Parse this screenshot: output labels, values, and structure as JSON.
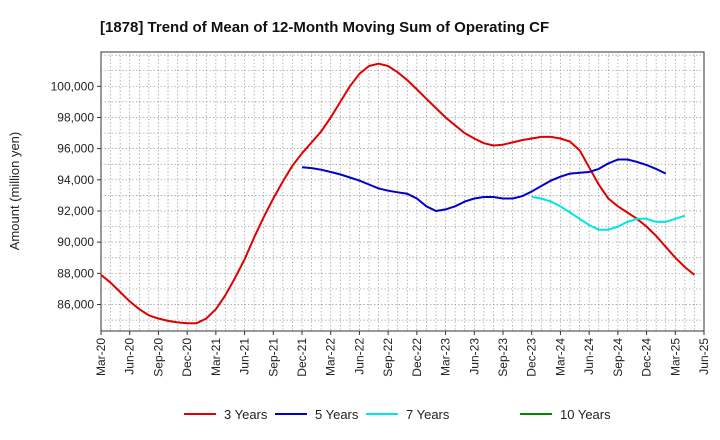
{
  "chart_data": {
    "type": "line",
    "title": "[1878]  Trend of Mean of 12-Month Moving Sum of Operating CF",
    "xlabel": "",
    "ylabel": "Amount (million yen)",
    "ylim": [
      84300,
      102200
    ],
    "y_ticks": [
      86000,
      88000,
      90000,
      92000,
      94000,
      96000,
      98000,
      100000
    ],
    "y_tick_labels": [
      "86,000",
      "88,000",
      "90,000",
      "92,000",
      "94,000",
      "96,000",
      "98,000",
      "100,000"
    ],
    "x_tick_labels": [
      "Mar-20",
      "Jun-20",
      "Sep-20",
      "Dec-20",
      "Mar-21",
      "Jun-21",
      "Sep-21",
      "Dec-21",
      "Mar-22",
      "Jun-22",
      "Sep-22",
      "Dec-22",
      "Mar-23",
      "Jun-23",
      "Sep-23",
      "Dec-23",
      "Mar-24",
      "Jun-24",
      "Sep-24",
      "Dec-24",
      "Mar-25",
      "Jun-25"
    ],
    "grid": true,
    "legend_position": "bottom",
    "series": [
      {
        "name": "3 Years",
        "color": "#e00000",
        "start_index": 0,
        "values": [
          87900,
          87400,
          86800,
          86200,
          85700,
          85300,
          85100,
          84950,
          84850,
          84800,
          84800,
          85100,
          85700,
          86600,
          87700,
          88900,
          90300,
          91600,
          92800,
          93900,
          94900,
          95700,
          96400,
          97100,
          98000,
          99000,
          100000,
          100800,
          101300,
          101450,
          101300,
          100900,
          100400,
          99800,
          99200,
          98600,
          98000,
          97500,
          97000,
          96650,
          96350,
          96200,
          96250,
          96400,
          96550,
          96650,
          96750,
          96750,
          96650,
          96450,
          95900,
          94800,
          93700,
          92800,
          92300,
          91900,
          91500,
          91000,
          90400,
          89700,
          89000,
          88400,
          87900
        ]
      },
      {
        "name": "5 Years",
        "color": "#0000cc",
        "start_index": 21,
        "values": [
          94800,
          94750,
          94650,
          94500,
          94350,
          94150,
          93950,
          93700,
          93450,
          93300,
          93200,
          93100,
          92800,
          92300,
          92000,
          92100,
          92300,
          92600,
          92800,
          92900,
          92900,
          92800,
          92800,
          92950,
          93250,
          93600,
          93950,
          94200,
          94400,
          94450,
          94500,
          94700,
          95050,
          95300,
          95300,
          95150,
          94950,
          94700,
          94400
        ]
      },
      {
        "name": "7 Years",
        "color": "#00e5e5",
        "start_index": 45,
        "values": [
          92900,
          92800,
          92600,
          92300,
          91900,
          91500,
          91100,
          90800,
          90800,
          91000,
          91300,
          91500,
          91500,
          91300,
          91300,
          91500,
          91700
        ]
      },
      {
        "name": "10 Years",
        "color": "#008800",
        "start_index": 0,
        "values": []
      }
    ]
  }
}
